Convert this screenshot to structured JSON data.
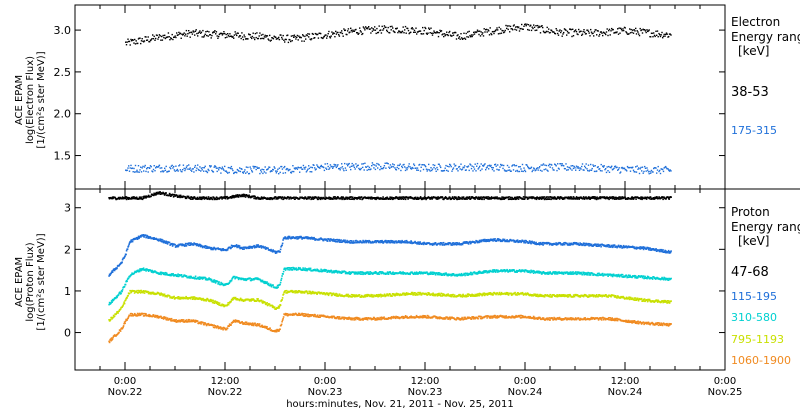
{
  "chart_data": [
    {
      "type": "scatter",
      "panel": "electron",
      "ylabel": [
        "ACE EPAM",
        "log(Electron Flux)",
        "[1/(cm²s ster MeV)]"
      ],
      "ylim": [
        1.1,
        3.3
      ],
      "yticks": [
        1.5,
        2.0,
        2.5,
        3.0
      ],
      "ytick_labels": [
        "1.5",
        "2.0",
        "2.5",
        "3.0"
      ],
      "x_range_hours": [
        -6,
        72
      ],
      "data_end_hour": 65.5,
      "legend": {
        "title": [
          "Electron",
          "Energy range",
          "[keV]"
        ],
        "placement": "right"
      },
      "series": [
        {
          "name": "38-53",
          "color": "#000000",
          "x": [
            0,
            4,
            8,
            12,
            16,
            20,
            24,
            28,
            32,
            36,
            40,
            44,
            48,
            52,
            56,
            60,
            65.5
          ],
          "y": [
            2.85,
            2.92,
            2.97,
            2.95,
            2.93,
            2.9,
            2.95,
            3.0,
            3.02,
            3.0,
            2.93,
            3.0,
            3.05,
            2.98,
            2.97,
            3.0,
            2.95
          ]
        },
        {
          "name": "175-315",
          "color": "#1e6fd9",
          "x": [
            0,
            6,
            12,
            18,
            24,
            30,
            36,
            42,
            48,
            54,
            60,
            65.5
          ],
          "y": [
            1.35,
            1.36,
            1.34,
            1.33,
            1.37,
            1.38,
            1.36,
            1.37,
            1.36,
            1.37,
            1.34,
            1.33
          ]
        }
      ]
    },
    {
      "type": "scatter",
      "panel": "proton",
      "ylabel": [
        "ACE EPAM",
        "log(Proton Flux)",
        "[1/(cm²s ster MeV)]"
      ],
      "ylim": [
        -0.9,
        3.45
      ],
      "yticks": [
        0,
        1,
        2,
        3
      ],
      "ytick_labels": [
        "0",
        "1",
        "2",
        "3"
      ],
      "x_range_hours": [
        -6,
        72
      ],
      "data_end_hour": 65.5,
      "legend": {
        "title": [
          "Proton",
          "Energy range",
          "[keV]"
        ],
        "placement": "right"
      },
      "series": [
        {
          "name": "47-68",
          "color": "#000000",
          "x": [
            -2,
            2,
            4,
            6,
            8,
            12,
            14,
            16,
            20,
            24,
            30,
            36,
            42,
            48,
            54,
            60,
            65.5
          ],
          "y": [
            3.25,
            3.25,
            3.38,
            3.3,
            3.25,
            3.25,
            3.32,
            3.25,
            3.25,
            3.25,
            3.25,
            3.25,
            3.25,
            3.25,
            3.25,
            3.25,
            3.25
          ]
        },
        {
          "name": "115-195",
          "color": "#1e6fd9",
          "x": [
            -2,
            -0.5,
            0,
            0.5,
            2,
            4,
            6,
            8,
            10,
            12,
            13,
            14,
            16,
            18,
            18.5,
            19,
            21,
            24,
            27,
            30,
            34,
            36,
            40,
            44,
            48,
            50,
            54,
            58,
            62,
            65.5
          ],
          "y": [
            1.4,
            1.7,
            1.9,
            2.2,
            2.35,
            2.25,
            2.1,
            2.15,
            2.05,
            2.0,
            2.12,
            2.05,
            2.1,
            1.95,
            1.97,
            2.3,
            2.3,
            2.25,
            2.2,
            2.2,
            2.2,
            2.15,
            2.15,
            2.25,
            2.2,
            2.15,
            2.15,
            2.1,
            2.05,
            1.95
          ]
        },
        {
          "name": "310-580",
          "color": "#00d0d0",
          "x": [
            -2,
            -0.5,
            0,
            0.5,
            2,
            4,
            6,
            8,
            10,
            12,
            13,
            14,
            16,
            18,
            18.5,
            19,
            21,
            24,
            27,
            30,
            34,
            36,
            40,
            44,
            48,
            50,
            54,
            58,
            62,
            65.5
          ],
          "y": [
            0.7,
            1.0,
            1.2,
            1.4,
            1.55,
            1.45,
            1.4,
            1.35,
            1.3,
            1.15,
            1.35,
            1.3,
            1.3,
            1.1,
            1.15,
            1.55,
            1.55,
            1.5,
            1.45,
            1.45,
            1.45,
            1.45,
            1.4,
            1.5,
            1.5,
            1.45,
            1.45,
            1.4,
            1.35,
            1.3
          ]
        },
        {
          "name": "795-1193",
          "color": "#c8e000",
          "x": [
            -2,
            -0.5,
            0,
            0.5,
            2,
            4,
            6,
            8,
            10,
            12,
            13,
            14,
            16,
            18,
            18.5,
            19,
            21,
            24,
            27,
            30,
            34,
            36,
            40,
            44,
            48,
            50,
            54,
            58,
            62,
            65.5
          ],
          "y": [
            0.3,
            0.6,
            0.8,
            1.0,
            1.0,
            0.95,
            0.85,
            0.85,
            0.8,
            0.65,
            0.85,
            0.8,
            0.8,
            0.6,
            0.65,
            1.0,
            1.0,
            0.95,
            0.9,
            0.9,
            0.95,
            0.95,
            0.9,
            0.95,
            0.95,
            0.9,
            0.9,
            0.9,
            0.8,
            0.75
          ]
        },
        {
          "name": "1060-1900",
          "color": "#f08a20",
          "x": [
            -2,
            -0.5,
            0,
            0.5,
            2,
            4,
            6,
            8,
            10,
            12,
            13,
            14,
            16,
            18,
            18.5,
            19,
            21,
            24,
            27,
            30,
            34,
            36,
            40,
            44,
            48,
            50,
            54,
            58,
            62,
            65.5
          ],
          "y": [
            -0.2,
            0.1,
            0.3,
            0.45,
            0.45,
            0.4,
            0.3,
            0.3,
            0.2,
            0.1,
            0.3,
            0.25,
            0.2,
            0.05,
            0.1,
            0.45,
            0.45,
            0.4,
            0.35,
            0.35,
            0.4,
            0.4,
            0.35,
            0.4,
            0.4,
            0.35,
            0.35,
            0.35,
            0.25,
            0.2
          ]
        }
      ]
    }
  ],
  "x_axis": {
    "title": "hours:minutes, Nov. 21, 2011 - Nov. 25, 2011",
    "ticks": [
      {
        "hour": 0,
        "time": "0:00",
        "date": "Nov.22"
      },
      {
        "hour": 12,
        "time": "12:00",
        "date": "Nov.22"
      },
      {
        "hour": 24,
        "time": "0:00",
        "date": "Nov.23"
      },
      {
        "hour": 36,
        "time": "12:00",
        "date": "Nov.23"
      },
      {
        "hour": 48,
        "time": "0:00",
        "date": "Nov.24"
      },
      {
        "hour": 60,
        "time": "12:00",
        "date": "Nov.24"
      },
      {
        "hour": 72,
        "time": "0:00",
        "date": "Nov.25"
      }
    ]
  },
  "labels": {
    "electron_title_1": "Electron",
    "electron_title_2": "Energy range",
    "electron_title_3": "[keV]",
    "proton_title_1": "Proton",
    "proton_title_2": "Energy range",
    "proton_title_3": "[keV]",
    "e_ylabel_1": "ACE EPAM",
    "e_ylabel_2": "log(Electron Flux)",
    "e_ylabel_3": "[1/(cm²s ster MeV)]",
    "p_ylabel_1": "ACE EPAM",
    "p_ylabel_2": "log(Proton Flux)",
    "p_ylabel_3": "[1/(cm²s ster MeV)]",
    "x_title": "hours:minutes, Nov. 21, 2011 - Nov. 25, 2011"
  }
}
